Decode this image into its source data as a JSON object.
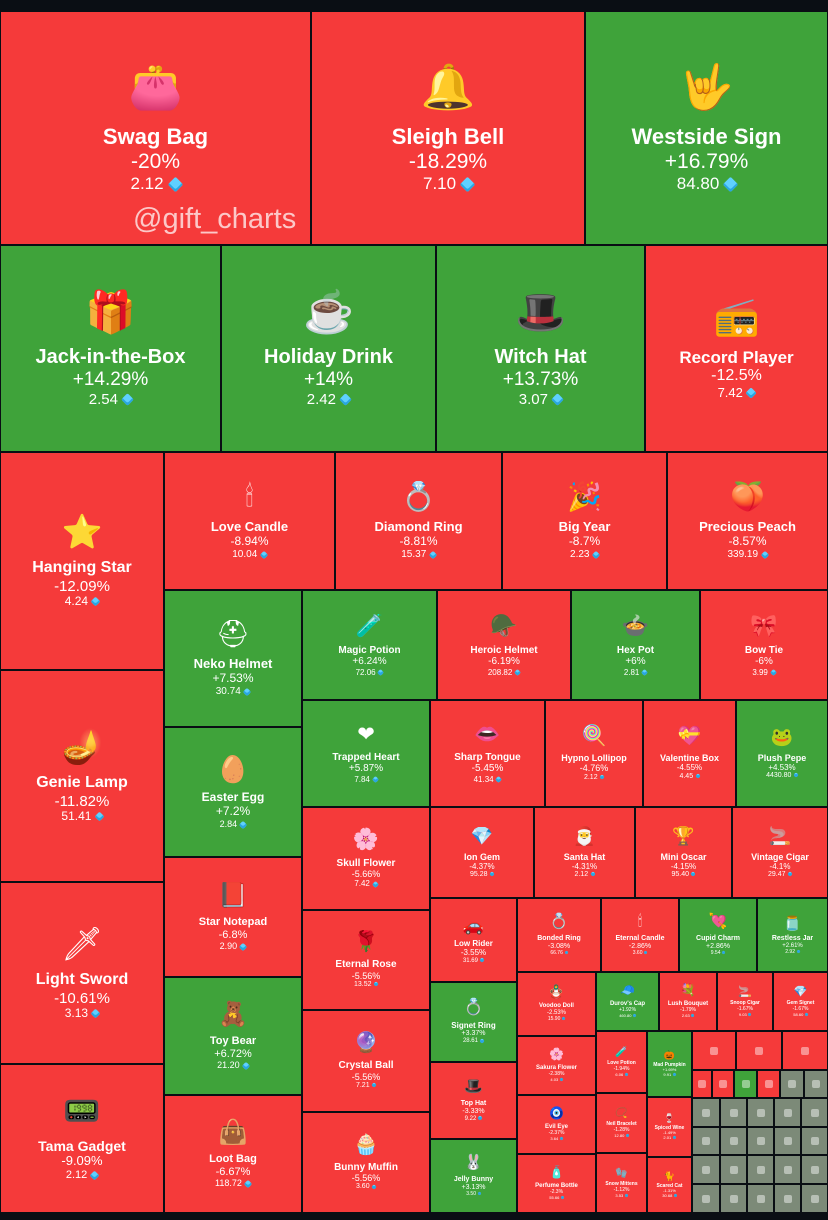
{
  "watermark": "@gift_charts",
  "currency_icon": "diamond-icon",
  "colors": {
    "down": "#f53a3a",
    "up": "#3fa33a",
    "flat": "#7c8a78",
    "gem": "#5fd0ff"
  },
  "chart_data": {
    "type": "treemap",
    "items": [
      {
        "name": "Swag Bag",
        "change": "-20%",
        "price": "2.12",
        "icon": "swag-bag-icon"
      },
      {
        "name": "Sleigh Bell",
        "change": "-18.29%",
        "price": "7.10",
        "icon": "sleigh-bell-icon"
      },
      {
        "name": "Westside Sign",
        "change": "+16.79%",
        "price": "84.80",
        "icon": "westside-sign-icon"
      },
      {
        "name": "Jack-in-the-Box",
        "change": "+14.29%",
        "price": "2.54",
        "icon": "jack-in-the-box-icon"
      },
      {
        "name": "Holiday Drink",
        "change": "+14%",
        "price": "2.42",
        "icon": "holiday-drink-icon"
      },
      {
        "name": "Witch Hat",
        "change": "+13.73%",
        "price": "3.07",
        "icon": "witch-hat-icon"
      },
      {
        "name": "Record Player",
        "change": "-12.5%",
        "price": "7.42",
        "icon": "record-player-icon"
      },
      {
        "name": "Hanging Star",
        "change": "-12.09%",
        "price": "4.24",
        "icon": "hanging-star-icon"
      },
      {
        "name": "Love Candle",
        "change": "-8.94%",
        "price": "10.04",
        "icon": "love-candle-icon"
      },
      {
        "name": "Diamond Ring",
        "change": "-8.81%",
        "price": "15.37",
        "icon": "diamond-ring-icon"
      },
      {
        "name": "Big Year",
        "change": "-8.7%",
        "price": "2.23",
        "icon": "big-year-icon"
      },
      {
        "name": "Precious Peach",
        "change": "-8.57%",
        "price": "339.19",
        "icon": "precious-peach-icon"
      },
      {
        "name": "Neko Helmet",
        "change": "+7.53%",
        "price": "30.74",
        "icon": "neko-helmet-icon"
      },
      {
        "name": "Magic Potion",
        "change": "+6.24%",
        "price": "72.06",
        "icon": "magic-potion-icon"
      },
      {
        "name": "Heroic Helmet",
        "change": "-6.19%",
        "price": "208.82",
        "icon": "heroic-helmet-icon"
      },
      {
        "name": "Hex Pot",
        "change": "+6%",
        "price": "2.81",
        "icon": "hex-pot-icon"
      },
      {
        "name": "Bow Tie",
        "change": "-6%",
        "price": "3.99",
        "icon": "bow-tie-icon"
      },
      {
        "name": "Genie Lamp",
        "change": "-11.82%",
        "price": "51.41",
        "icon": "genie-lamp-icon"
      },
      {
        "name": "Easter Egg",
        "change": "+7.2%",
        "price": "2.84",
        "icon": "easter-egg-icon"
      },
      {
        "name": "Trapped Heart",
        "change": "+5.87%",
        "price": "7.84",
        "icon": "trapped-heart-icon"
      },
      {
        "name": "Sharp Tongue",
        "change": "-5.45%",
        "price": "41.34",
        "icon": "sharp-tongue-icon"
      },
      {
        "name": "Hypno Lollipop",
        "change": "-4.76%",
        "price": "2.12",
        "icon": "hypno-lollipop-icon"
      },
      {
        "name": "Valentine Box",
        "change": "-4.55%",
        "price": "4.45",
        "icon": "valentine-box-icon"
      },
      {
        "name": "Plush Pepe",
        "change": "+4.53%",
        "price": "4430.80",
        "icon": "plush-pepe-icon"
      },
      {
        "name": "Skull Flower",
        "change": "-5.66%",
        "price": "7.42",
        "icon": "skull-flower-icon"
      },
      {
        "name": "Ion Gem",
        "change": "-4.37%",
        "price": "95.28",
        "icon": "ion-gem-icon"
      },
      {
        "name": "Santa Hat",
        "change": "-4.31%",
        "price": "2.12",
        "icon": "santa-hat-icon"
      },
      {
        "name": "Mini Oscar",
        "change": "-4.15%",
        "price": "95.40",
        "icon": "mini-oscar-icon"
      },
      {
        "name": "Vintage Cigar",
        "change": "-4.1%",
        "price": "29.47",
        "icon": "vintage-cigar-icon"
      },
      {
        "name": "Light Sword",
        "change": "-10.61%",
        "price": "3.13",
        "icon": "light-sword-icon"
      },
      {
        "name": "Star Notepad",
        "change": "-6.8%",
        "price": "2.90",
        "icon": "star-notepad-icon"
      },
      {
        "name": "Eternal Rose",
        "change": "-5.56%",
        "price": "13.52",
        "icon": "eternal-rose-icon"
      },
      {
        "name": "Low Rider",
        "change": "-3.55%",
        "price": "31.69",
        "icon": "low-rider-icon"
      },
      {
        "name": "Bonded Ring",
        "change": "-3.08%",
        "price": "66.76",
        "icon": "bonded-ring-icon"
      },
      {
        "name": "Eternal Candle",
        "change": "-2.86%",
        "price": "3.60",
        "icon": "eternal-candle-icon"
      },
      {
        "name": "Cupid Charm",
        "change": "+2.86%",
        "price": "9.54",
        "icon": "cupid-charm-icon"
      },
      {
        "name": "Restless Jar",
        "change": "+2.61%",
        "price": "2.92",
        "icon": "restless-jar-icon"
      },
      {
        "name": "Toy Bear",
        "change": "+6.72%",
        "price": "21.20",
        "icon": "toy-bear-icon"
      },
      {
        "name": "Crystal Ball",
        "change": "-5.56%",
        "price": "7.21",
        "icon": "crystal-ball-icon"
      },
      {
        "name": "Signet Ring",
        "change": "+3.37%",
        "price": "28.61",
        "icon": "signet-ring-icon"
      },
      {
        "name": "Voodoo Doll",
        "change": "-2.53%",
        "price": "15.90",
        "icon": "voodoo-doll-icon"
      },
      {
        "name": "Durov's Cap",
        "change": "+1.92%",
        "price": "460.80",
        "icon": "durovs-cap-icon"
      },
      {
        "name": "Lush Bouquet",
        "change": "-1.79%",
        "price": "2.63",
        "icon": "lush-bouquet-icon"
      },
      {
        "name": "Snoop Cigar",
        "change": "-1.67%",
        "price": "9.03",
        "icon": "snoop-cigar-icon"
      },
      {
        "name": "Gem Signet",
        "change": "-1.67%",
        "price": "58.60",
        "icon": "gem-signet-icon"
      },
      {
        "name": "Sakura Flower",
        "change": "-2.38%",
        "price": "4.03",
        "icon": "sakura-flower-icon"
      },
      {
        "name": "Love Potion",
        "change": "-1.94%",
        "price": "6.06",
        "icon": "love-potion-icon"
      },
      {
        "name": "Mad Pumpkin",
        "change": "+1.69%",
        "price": "9.91",
        "icon": "mad-pumpkin-icon"
      },
      {
        "name": "Tama Gadget",
        "change": "-9.09%",
        "price": "2.12",
        "icon": "tama-gadget-icon"
      },
      {
        "name": "Loot Bag",
        "change": "-6.67%",
        "price": "118.72",
        "icon": "loot-bag-icon"
      },
      {
        "name": "Bunny Muffin",
        "change": "-5.56%",
        "price": "3.60",
        "icon": "bunny-muffin-icon"
      },
      {
        "name": "Top Hat",
        "change": "-3.33%",
        "price": "9.22",
        "icon": "top-hat-icon"
      },
      {
        "name": "Jelly Bunny",
        "change": "+3.13%",
        "price": "3.50",
        "icon": "jelly-bunny-icon"
      },
      {
        "name": "Evil Eye",
        "change": "-2.37%",
        "price": "3.64",
        "icon": "evil-eye-icon"
      },
      {
        "name": "Perfume Bottle",
        "change": "-2.3%",
        "price": "55.66",
        "icon": "perfume-bottle-icon"
      },
      {
        "name": "Neil Bracelet",
        "change": "-1.28%",
        "price": "12.80",
        "icon": "neil-bracelet-icon"
      },
      {
        "name": "Snow Mittens",
        "change": "-1.12%",
        "price": "3.53",
        "icon": "snow-mittens-icon"
      },
      {
        "name": "Spiced Wine",
        "change": "-1.49%",
        "price": "2.01",
        "icon": "spiced-wine-icon"
      },
      {
        "name": "Scared Cat",
        "change": "-1.31%",
        "price": "30.68",
        "icon": "scared-cat-icon"
      }
    ]
  }
}
